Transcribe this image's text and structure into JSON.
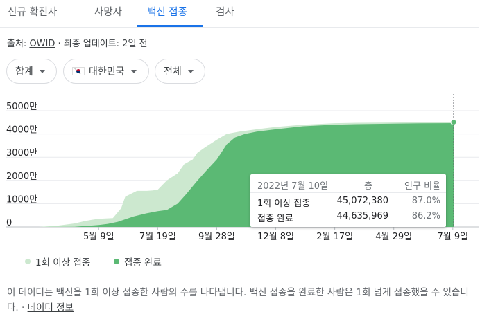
{
  "tabs": [
    {
      "label": "신규 확진자",
      "active": false
    },
    {
      "label": "사망자",
      "active": false
    },
    {
      "label": "백신 접종",
      "active": true
    },
    {
      "label": "검사",
      "active": false
    }
  ],
  "source": {
    "prefix": "출처: ",
    "name": "OWID",
    "suffix": " · 최종 업데이트: 2일 전"
  },
  "filters": {
    "measure": "합계",
    "country": "대한민국",
    "country_flag": "south-korea-flag-icon",
    "range": "전체"
  },
  "colors": {
    "accent": "#1a73e8",
    "partial": "#cce8cf",
    "full": "#5bb974"
  },
  "tooltip": {
    "date": "2022년 7월 10일",
    "col_total": "총",
    "col_ratio": "인구 비율",
    "rows": [
      {
        "label": "1회 이상 접종",
        "total": "45,072,380",
        "ratio": "87.0%"
      },
      {
        "label": "접종 완료",
        "total": "44,635,969",
        "ratio": "86.2%"
      }
    ]
  },
  "legend": [
    {
      "label": "1회 이상 접종"
    },
    {
      "label": "접종 완료"
    }
  ],
  "footnote": {
    "text": "이 데이터는 백신을 1회 이상 접종한 사람의 수를 나타냅니다. 백신 접종을 완료한 사람은 1회 넘게 접종했을 수 있습니다.",
    "sep": " · ",
    "link": "데이터 정보"
  },
  "chart_data": {
    "type": "area",
    "title": "",
    "xlabel": "",
    "ylabel": "",
    "y_ticks": [
      "0",
      "1000만",
      "2000만",
      "3000만",
      "4000만",
      "5000만"
    ],
    "y_tick_values": [
      0,
      10000000,
      20000000,
      30000000,
      40000000,
      50000000
    ],
    "ylim": [
      0,
      50000000
    ],
    "x_ticks": [
      "5월 9일",
      "7월 19일",
      "9월 28일",
      "12월 8일",
      "2월 17일",
      "4월 29일",
      "7월 9일"
    ],
    "x_tick_dates": [
      "2021-05-09",
      "2021-07-19",
      "2021-09-28",
      "2021-12-08",
      "2022-02-17",
      "2022-04-29",
      "2022-07-09"
    ],
    "xlim": [
      "2021-02-26",
      "2022-07-10"
    ],
    "series": [
      {
        "name": "1회 이상 접종",
        "x": [
          "2021-02-26",
          "2021-03-20",
          "2021-04-10",
          "2021-04-22",
          "2021-04-30",
          "2021-05-09",
          "2021-05-26",
          "2021-06-05",
          "2021-06-10",
          "2021-06-24",
          "2021-07-06",
          "2021-07-13",
          "2021-07-19",
          "2021-07-30",
          "2021-08-12",
          "2021-08-20",
          "2021-08-30",
          "2021-09-05",
          "2021-09-15",
          "2021-09-28",
          "2021-10-10",
          "2021-10-25",
          "2021-11-15",
          "2021-12-08",
          "2022-01-10",
          "2022-02-17",
          "2022-03-15",
          "2022-04-29",
          "2022-06-01",
          "2022-07-10"
        ],
        "y": [
          0,
          500000,
          1500000,
          2500000,
          3000000,
          3500000,
          3800000,
          8000000,
          13000000,
          15500000,
          15500000,
          15700000,
          16000000,
          20000000,
          23000000,
          27000000,
          29000000,
          32000000,
          34500000,
          37500000,
          40000000,
          41000000,
          42000000,
          43000000,
          44000000,
          44600000,
          44800000,
          44900000,
          45000000,
          45072380
        ]
      },
      {
        "name": "접종 완료",
        "x": [
          "2021-02-26",
          "2021-04-10",
          "2021-05-09",
          "2021-05-20",
          "2021-06-01",
          "2021-06-20",
          "2021-07-05",
          "2021-07-19",
          "2021-07-30",
          "2021-08-12",
          "2021-08-22",
          "2021-09-05",
          "2021-09-15",
          "2021-09-28",
          "2021-10-10",
          "2021-10-20",
          "2021-11-01",
          "2021-11-15",
          "2021-12-08",
          "2022-01-10",
          "2022-02-17",
          "2022-03-15",
          "2022-04-29",
          "2022-06-01",
          "2022-07-10"
        ],
        "y": [
          0,
          100000,
          800000,
          1300000,
          2200000,
          4500000,
          5800000,
          6800000,
          7300000,
          10000000,
          14000000,
          20000000,
          24000000,
          29000000,
          35500000,
          38500000,
          40000000,
          41000000,
          42000000,
          43300000,
          44000000,
          44200000,
          44400000,
          44550000,
          44635969
        ]
      }
    ],
    "grid": true,
    "legend_position": "bottom-left"
  }
}
